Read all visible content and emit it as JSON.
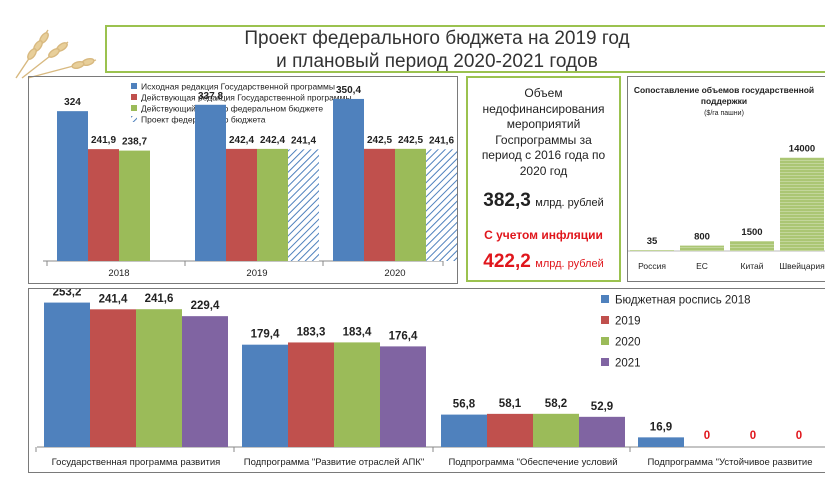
{
  "header": {
    "title_line1": "Проект федерального бюджета на 2019 год",
    "title_line2": "и плановый период 2020-2021 годов"
  },
  "info_box": {
    "text_lines": [
      "Объем",
      "недофинансирования",
      "мероприятий",
      "Госпрограммы за",
      "период с 2016 года по",
      "2020 год"
    ],
    "value": "382,3",
    "unit": "млрд. рублей",
    "inflation_label": "С учетом инфляции",
    "inflation_value": "422,2",
    "inflation_unit": "млрд. рублей"
  },
  "colors": {
    "blue": "#4f81bd",
    "red": "#c0504d",
    "green": "#9bbb59",
    "purple": "#8064a2",
    "hatch": "#4f81bd",
    "accent_green": "#9bc24f",
    "inflation_red": "#e0161c"
  },
  "chart_data": [
    {
      "type": "bar",
      "categories": [
        "2018",
        "2019",
        "2020"
      ],
      "series": [
        {
          "name": "Исходная редакция Государственной программы",
          "values": [
            324,
            337.8,
            350.4
          ],
          "labels": [
            "324",
            "337,8",
            "350,4"
          ]
        },
        {
          "name": "Действующая редакция Государственной программы",
          "values": [
            241.9,
            242.4,
            242.5
          ],
          "labels": [
            "241,9",
            "242,4",
            "242,5"
          ]
        },
        {
          "name": "Действующий Закон о федеральном бюджете",
          "values": [
            238.7,
            242.4,
            242.5
          ],
          "labels": [
            "238,7",
            "242,4",
            "242,5"
          ]
        },
        {
          "name": "Проект федерального бюджета",
          "values": [
            null,
            241.4,
            241.6
          ],
          "labels": [
            "",
            "241,4",
            "241,6"
          ]
        }
      ],
      "legend_position": "top-left",
      "ylim": [
        0,
        400
      ],
      "grid": false
    },
    {
      "type": "bar",
      "title": "Сопоставление объемов государственной поддержки",
      "subtitle": "($/га пашни)",
      "categories": [
        "Россия",
        "ЕС",
        "Китай",
        "Швейцария"
      ],
      "values": [
        35,
        800,
        1500,
        14000
      ],
      "labels": [
        "35",
        "800",
        "1500",
        "14000"
      ],
      "ylim": [
        0,
        18000
      ],
      "grid": false
    },
    {
      "type": "bar",
      "categories": [
        "Государственная программа развития",
        "Подпрограмма \"Развитие отраслей АПК\"",
        "Подпрограмма \"Обеспечение условий",
        "Подпрограмма \"Устойчивое развитие"
      ],
      "series": [
        {
          "name": "Бюджетная роспись 2018",
          "values": [
            253.2,
            179.4,
            56.8,
            16.9
          ],
          "labels": [
            "253,2",
            "179,4",
            "56,8",
            "16,9"
          ]
        },
        {
          "name": "2019",
          "values": [
            241.4,
            183.3,
            58.1,
            0
          ],
          "labels": [
            "241,4",
            "183,3",
            "58,1",
            "0"
          ]
        },
        {
          "name": "2020",
          "values": [
            241.6,
            183.4,
            58.2,
            0
          ],
          "labels": [
            "241,6",
            "183,4",
            "58,2",
            "0"
          ]
        },
        {
          "name": "2021",
          "values": [
            229.4,
            176.4,
            52.9,
            0
          ],
          "labels": [
            "229,4",
            "176,4",
            "52,9",
            "0"
          ]
        }
      ],
      "legend_position": "top-right",
      "ylim": [
        0,
        270
      ],
      "grid": false
    }
  ]
}
